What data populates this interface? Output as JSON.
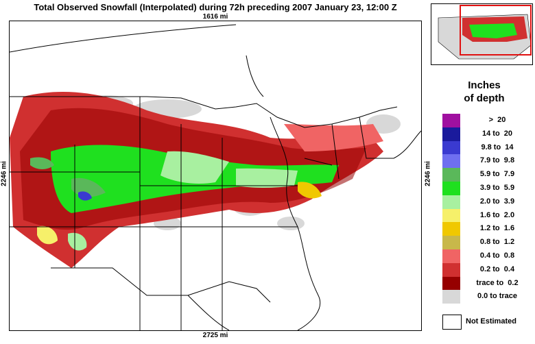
{
  "title": "Total Observed Snowfall (Interpolated) during 72h preceding 2007 January 23, 12:00 Z",
  "distances": {
    "top": "1616 mi",
    "bottom": "2725 mi",
    "left": "2246 mi",
    "right": "2246 mi"
  },
  "legend": {
    "title_line1": "Inches",
    "title_line2": "of depth",
    "items": [
      {
        "label": ">  20",
        "color": "#a010a0"
      },
      {
        "label": "14 to  20",
        "color": "#1a1a9c"
      },
      {
        "label": "9.8 to  14",
        "color": "#3a3ad0"
      },
      {
        "label": "7.9 to  9.8",
        "color": "#6f6ff0"
      },
      {
        "label": "5.9 to  7.9",
        "color": "#5ab85a"
      },
      {
        "label": "3.9 to  5.9",
        "color": "#1fe01f"
      },
      {
        "label": "2.0 to  3.9",
        "color": "#a8f0a0"
      },
      {
        "label": "1.6 to  2.0",
        "color": "#f6f06a"
      },
      {
        "label": "1.2 to  1.6",
        "color": "#f0c800"
      },
      {
        "label": "0.8 to  1.2",
        "color": "#c8b84a"
      },
      {
        "label": "0.4 to  0.8",
        "color": "#f06464"
      },
      {
        "label": "0.2 to  0.4",
        "color": "#d03030"
      },
      {
        "label": "trace to  0.2",
        "color": "#960000"
      },
      {
        "label": "0.0 to trace",
        "color": "#d8d8d8"
      }
    ],
    "not_estimated_label": "Not Estimated"
  }
}
